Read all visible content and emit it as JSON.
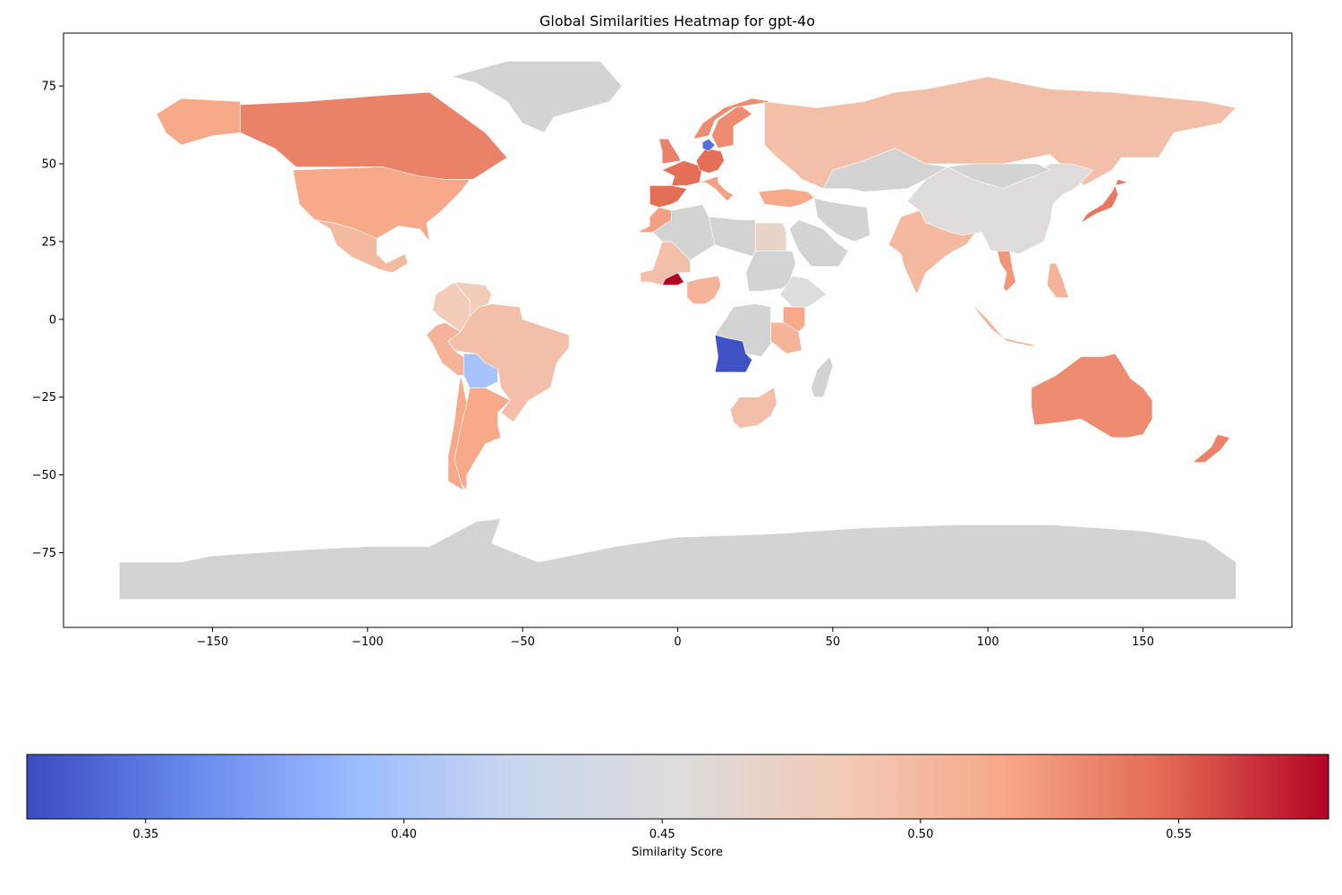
{
  "chart_data": {
    "type": "choropleth",
    "title": "Global Similarities Heatmap for gpt-4o",
    "xlabel": "",
    "ylabel": "",
    "xlim": [
      -198,
      198
    ],
    "ylim": [
      -99,
      92
    ],
    "x_ticks": [
      -150,
      -100,
      -50,
      0,
      50,
      100,
      150
    ],
    "x_tick_labels": [
      "−150",
      "−100",
      "−50",
      "0",
      "50",
      "100",
      "150"
    ],
    "y_ticks": [
      75,
      50,
      25,
      0,
      -25,
      -50,
      -75
    ],
    "y_tick_labels": [
      "75",
      "50",
      "25",
      "0",
      "−25",
      "−50",
      "−75"
    ],
    "no_data_color": "#d3d3d3",
    "colormap": "coolwarm",
    "colorbar": {
      "label": "Similarity Score",
      "vmin": 0.327,
      "vmax": 0.579,
      "ticks": [
        0.35,
        0.4,
        0.45,
        0.5,
        0.55
      ],
      "tick_labels": [
        "0.35",
        "0.40",
        "0.45",
        "0.50",
        "0.55"
      ],
      "stops": [
        "#3b4cc0",
        "#6788ee",
        "#9abbff",
        "#c9d7f0",
        "#dddcdc",
        "#f2cbb7",
        "#f7a889",
        "#e26952",
        "#b40426"
      ]
    },
    "regions": [
      {
        "name": "Canada",
        "value": 0.535
      },
      {
        "name": "United States of America",
        "value": 0.515
      },
      {
        "name": "Alaska",
        "value": 0.515
      },
      {
        "name": "Mexico",
        "value": 0.5
      },
      {
        "name": "Colombia",
        "value": 0.483
      },
      {
        "name": "Venezuela",
        "value": 0.483
      },
      {
        "name": "Brazil",
        "value": 0.495
      },
      {
        "name": "Peru",
        "value": 0.505
      },
      {
        "name": "Bolivia",
        "value": 0.398
      },
      {
        "name": "Argentina",
        "value": 0.515
      },
      {
        "name": "Chile",
        "value": 0.515
      },
      {
        "name": "Greenland",
        "value": null
      },
      {
        "name": "Russia",
        "value": 0.495
      },
      {
        "name": "China",
        "value": 0.455
      },
      {
        "name": "India",
        "value": 0.5
      },
      {
        "name": "Australia",
        "value": 0.53
      },
      {
        "name": "Angola",
        "value": 0.33
      },
      {
        "name": "Burkina Faso",
        "value": 0.579
      },
      {
        "name": "Nigeria",
        "value": 0.505
      },
      {
        "name": "Mali",
        "value": 0.495
      },
      {
        "name": "Kenya",
        "value": 0.515
      },
      {
        "name": "Tanzania",
        "value": 0.505
      },
      {
        "name": "South Africa",
        "value": 0.495
      },
      {
        "name": "Madagascar",
        "value": null
      },
      {
        "name": "Egypt",
        "value": 0.47
      },
      {
        "name": "Ethiopia",
        "value": 0.45
      },
      {
        "name": "Morocco",
        "value": 0.52
      },
      {
        "name": "France",
        "value": 0.545
      },
      {
        "name": "Spain",
        "value": 0.545
      },
      {
        "name": "Germany",
        "value": 0.545
      },
      {
        "name": "United Kingdom",
        "value": 0.535
      },
      {
        "name": "Sweden",
        "value": 0.53
      },
      {
        "name": "Norway",
        "value": 0.53
      },
      {
        "name": "Denmark",
        "value": 0.345
      },
      {
        "name": "Italy",
        "value": 0.52
      },
      {
        "name": "Turkey",
        "value": 0.515
      },
      {
        "name": "Japan",
        "value": 0.54
      },
      {
        "name": "Vietnam",
        "value": 0.525
      },
      {
        "name": "Indonesia",
        "value": 0.505
      },
      {
        "name": "Philippines",
        "value": 0.505
      },
      {
        "name": "New Zealand",
        "value": 0.535
      },
      {
        "name": "Kazakhstan",
        "value": null
      },
      {
        "name": "Iran",
        "value": null
      },
      {
        "name": "Saudi Arabia",
        "value": null
      },
      {
        "name": "Algeria",
        "value": null
      },
      {
        "name": "Libya",
        "value": null
      },
      {
        "name": "Sudan",
        "value": null
      },
      {
        "name": "DR Congo",
        "value": null
      },
      {
        "name": "Mongolia",
        "value": null
      },
      {
        "name": "Antarctica",
        "value": null
      }
    ]
  }
}
